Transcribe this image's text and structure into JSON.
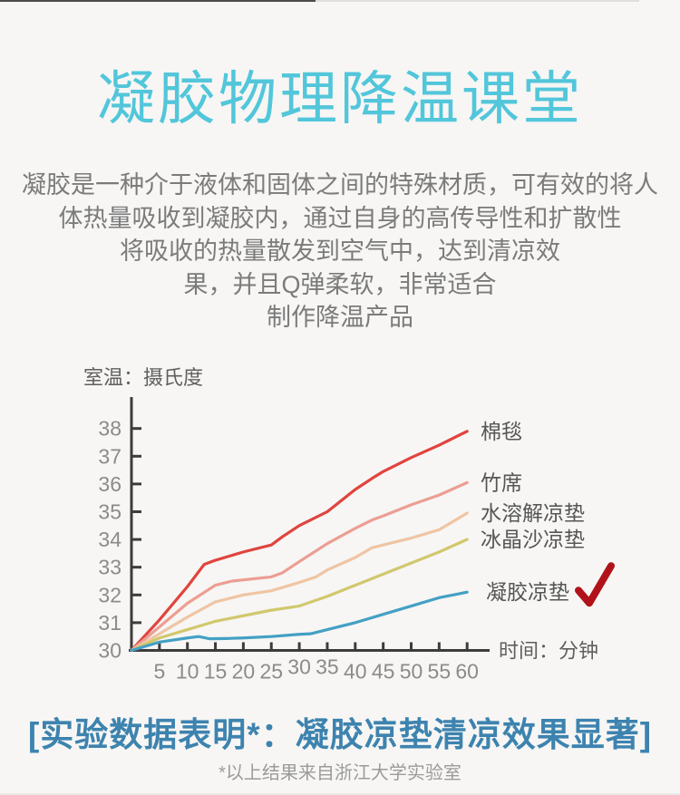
{
  "page": {
    "background_color": "#f7f6f4",
    "top_line_color": "#4b4b4b"
  },
  "header": {
    "title": "凝胶物理降温课堂",
    "title_color": "#52c6da"
  },
  "intro": {
    "lines": [
      "凝胶是一种介于液体和固体之间的特殊材质，可有效的将人",
      "体热量吸收到凝胶内，通过自身的高传导性和扩散性",
      "将吸收的热量散发到空气中，达到清凉效",
      "果，并且Q弹柔软，非常适合",
      "制作降温产品"
    ],
    "text_color": "#7b7b7b"
  },
  "chart_data": {
    "type": "line",
    "title": "",
    "ylabel": "室温：摄氏度",
    "xlabel": "时间：分钟",
    "x_ticks": [
      5,
      10,
      15,
      20,
      25,
      30,
      35,
      40,
      45,
      50,
      55,
      60
    ],
    "y_ticks": [
      30,
      31,
      32,
      33,
      34,
      35,
      36,
      37,
      38
    ],
    "xlim": [
      0,
      63
    ],
    "ylim": [
      30,
      38.8
    ],
    "grid": false,
    "legend_position": "right-of-line-ends",
    "axis_color": "#3c3c3c",
    "axis_label_color": "#5f5f5f",
    "tick_label_color": "#8b8b8b",
    "series_label_color": "#565656",
    "checkmark_color": "#b1121a",
    "series": [
      {
        "name": "棉毯",
        "color": "#e0443e",
        "checked": false,
        "x": [
          0,
          5,
          10,
          13,
          15,
          20,
          25,
          27,
          30,
          35,
          40,
          43,
          45,
          50,
          55,
          60
        ],
        "y": [
          30,
          31.1,
          32.3,
          33.1,
          33.25,
          33.55,
          33.8,
          34.1,
          34.5,
          35.0,
          35.8,
          36.2,
          36.45,
          36.95,
          37.4,
          37.9
        ]
      },
      {
        "name": "竹席",
        "color": "#ec9e93",
        "checked": false,
        "x": [
          0,
          5,
          10,
          15,
          18,
          25,
          27,
          30,
          35,
          40,
          43,
          45,
          50,
          55,
          60
        ],
        "y": [
          30,
          30.85,
          31.7,
          32.35,
          32.5,
          32.65,
          32.8,
          33.2,
          33.85,
          34.4,
          34.7,
          34.85,
          35.25,
          35.6,
          36.05
        ]
      },
      {
        "name": "水溶解凉垫",
        "color": "#efc5a4",
        "checked": false,
        "x": [
          0,
          5,
          10,
          15,
          20,
          25,
          30,
          33,
          35,
          40,
          43,
          45,
          50,
          55,
          60
        ],
        "y": [
          30,
          30.6,
          31.2,
          31.75,
          32.0,
          32.15,
          32.45,
          32.65,
          32.9,
          33.35,
          33.7,
          33.8,
          34.05,
          34.35,
          34.95
        ]
      },
      {
        "name": "冰晶沙凉垫",
        "color": "#d1c86e",
        "checked": false,
        "x": [
          0,
          5,
          10,
          15,
          20,
          25,
          30,
          35,
          40,
          45,
          50,
          55,
          60
        ],
        "y": [
          30,
          30.45,
          30.75,
          31.05,
          31.25,
          31.45,
          31.6,
          31.95,
          32.35,
          32.75,
          33.15,
          33.55,
          34.0
        ]
      },
      {
        "name": "凝胶凉垫",
        "color": "#44a0c4",
        "checked": true,
        "x": [
          0,
          5,
          10,
          12,
          14,
          17,
          20,
          25,
          30,
          32,
          35,
          40,
          45,
          50,
          55,
          60
        ],
        "y": [
          30,
          30.3,
          30.45,
          30.5,
          30.42,
          30.43,
          30.45,
          30.5,
          30.58,
          30.6,
          30.75,
          31.0,
          31.3,
          31.6,
          31.9,
          32.1
        ]
      }
    ]
  },
  "conclusion": {
    "headline": "[实验数据表明*：凝胶凉垫清凉效果显著]",
    "headline_color": "#3d83af",
    "footnote": "*以上结果来自浙江大学实验室",
    "footnote_color": "#9b9b9b"
  }
}
